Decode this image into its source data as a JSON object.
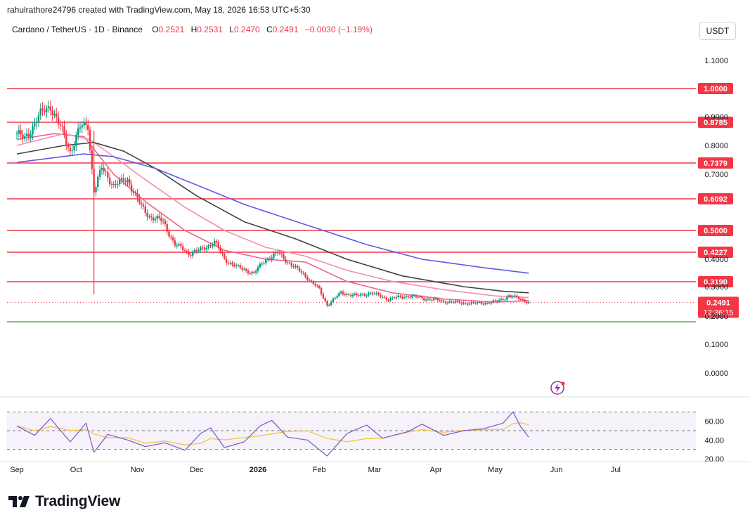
{
  "attribution": "rahulrathore24796 created with TradingView.com, May 18, 2026 16:53 UTC+5:30",
  "legend": {
    "symbol": "Cardano / TetherUS · 1D · Binance",
    "open_label": "O",
    "open": "0.2521",
    "high_label": "H",
    "high": "0.2531",
    "low_label": "L",
    "low": "0.2470",
    "close_label": "C",
    "close": "0.2491",
    "change": "−0.0030 (−1.19%)"
  },
  "currency_button": "USDT",
  "brand": "TradingView",
  "colors": {
    "up": "#089981",
    "down": "#f23645",
    "level": "#f23645",
    "support": "#4caf50",
    "ma_fast": "#f06292",
    "ma_mid": "#f48fb1",
    "ma_slow": "#424242",
    "ma_long": "#5b5bea",
    "rsi": "#7e57c2",
    "rsi_ma": "#f5c542"
  },
  "chart_data": {
    "type": "candlestick",
    "pair": "ADA/USDT",
    "timeframe": "1D",
    "exchange": "Binance",
    "price_axis": {
      "ticks": [
        "1.1000",
        "0.9000",
        "0.8000",
        "0.7000",
        "0.4000",
        "0.3000",
        "0.2000",
        "0.1000",
        "0.0000"
      ]
    },
    "time_axis": {
      "labels": [
        "Sep",
        "Oct",
        "Nov",
        "Dec",
        "2026",
        "Feb",
        "Mar",
        "Apr",
        "May",
        "Jun",
        "Jul"
      ]
    },
    "horizontal_levels": [
      {
        "value": "1.0000"
      },
      {
        "value": "0.8785"
      },
      {
        "value": "0.7379"
      },
      {
        "value": "0.6092"
      },
      {
        "value": "0.5000"
      },
      {
        "value": "0.4227"
      },
      {
        "value": "0.3190"
      }
    ],
    "support_level": 0.21,
    "last_price": {
      "value": "0.2491",
      "countdown": "12:36:15"
    },
    "price_path": [
      {
        "date": "2025-09-01",
        "close": 0.84
      },
      {
        "date": "2025-09-05",
        "close": 0.82
      },
      {
        "date": "2025-09-12",
        "close": 0.9
      },
      {
        "date": "2025-09-18",
        "close": 0.94
      },
      {
        "date": "2025-09-23",
        "close": 0.86
      },
      {
        "date": "2025-09-28",
        "close": 0.78
      },
      {
        "date": "2025-10-03",
        "close": 0.86
      },
      {
        "date": "2025-10-07",
        "close": 0.87
      },
      {
        "date": "2025-10-10",
        "close": 0.64
      },
      {
        "date": "2025-10-14",
        "close": 0.72
      },
      {
        "date": "2025-10-20",
        "close": 0.66
      },
      {
        "date": "2025-10-27",
        "close": 0.68
      },
      {
        "date": "2025-11-03",
        "close": 0.58
      },
      {
        "date": "2025-11-07",
        "close": 0.55
      },
      {
        "date": "2025-11-14",
        "close": 0.53
      },
      {
        "date": "2025-11-20",
        "close": 0.45
      },
      {
        "date": "2025-11-27",
        "close": 0.42
      },
      {
        "date": "2025-12-03",
        "close": 0.43
      },
      {
        "date": "2025-12-10",
        "close": 0.46
      },
      {
        "date": "2025-12-15",
        "close": 0.4
      },
      {
        "date": "2025-12-22",
        "close": 0.37
      },
      {
        "date": "2025-12-30",
        "close": 0.35
      },
      {
        "date": "2026-01-05",
        "close": 0.4
      },
      {
        "date": "2026-01-11",
        "close": 0.42
      },
      {
        "date": "2026-01-18",
        "close": 0.38
      },
      {
        "date": "2026-01-25",
        "close": 0.34
      },
      {
        "date": "2026-02-01",
        "close": 0.29
      },
      {
        "date": "2026-02-05",
        "close": 0.24
      },
      {
        "date": "2026-02-12",
        "close": 0.28
      },
      {
        "date": "2026-02-20",
        "close": 0.27
      },
      {
        "date": "2026-02-27",
        "close": 0.28
      },
      {
        "date": "2026-03-08",
        "close": 0.26
      },
      {
        "date": "2026-03-18",
        "close": 0.27
      },
      {
        "date": "2026-03-28",
        "close": 0.26
      },
      {
        "date": "2026-04-08",
        "close": 0.25
      },
      {
        "date": "2026-04-20",
        "close": 0.245
      },
      {
        "date": "2026-05-01",
        "close": 0.25
      },
      {
        "date": "2026-05-08",
        "close": 0.27
      },
      {
        "date": "2026-05-14",
        "close": 0.26
      },
      {
        "date": "2026-05-18",
        "close": 0.2491
      }
    ],
    "rsi": {
      "ticks": [
        "60.00",
        "40.00",
        "20.00"
      ],
      "bands": [
        70,
        50,
        30
      ],
      "series": [
        {
          "date": "2025-09-01",
          "value": 55
        },
        {
          "date": "2025-09-10",
          "value": 45
        },
        {
          "date": "2025-09-18",
          "value": 63
        },
        {
          "date": "2025-09-28",
          "value": 38
        },
        {
          "date": "2025-10-06",
          "value": 58
        },
        {
          "date": "2025-10-10",
          "value": 27
        },
        {
          "date": "2025-10-17",
          "value": 46
        },
        {
          "date": "2025-10-27",
          "value": 40
        },
        {
          "date": "2025-11-05",
          "value": 33
        },
        {
          "date": "2025-11-15",
          "value": 37
        },
        {
          "date": "2025-11-25",
          "value": 29
        },
        {
          "date": "2025-12-03",
          "value": 47
        },
        {
          "date": "2025-12-08",
          "value": 53
        },
        {
          "date": "2025-12-15",
          "value": 32
        },
        {
          "date": "2025-12-25",
          "value": 38
        },
        {
          "date": "2026-01-02",
          "value": 55
        },
        {
          "date": "2026-01-08",
          "value": 61
        },
        {
          "date": "2026-01-16",
          "value": 43
        },
        {
          "date": "2026-01-26",
          "value": 40
        },
        {
          "date": "2026-02-05",
          "value": 23
        },
        {
          "date": "2026-02-15",
          "value": 47
        },
        {
          "date": "2026-02-25",
          "value": 56
        },
        {
          "date": "2026-03-05",
          "value": 42
        },
        {
          "date": "2026-03-18",
          "value": 49
        },
        {
          "date": "2026-03-25",
          "value": 57
        },
        {
          "date": "2026-04-05",
          "value": 45
        },
        {
          "date": "2026-04-15",
          "value": 50
        },
        {
          "date": "2026-04-25",
          "value": 52
        },
        {
          "date": "2026-05-05",
          "value": 58
        },
        {
          "date": "2026-05-10",
          "value": 70
        },
        {
          "date": "2026-05-14",
          "value": 54
        },
        {
          "date": "2026-05-18",
          "value": 43
        }
      ]
    },
    "moving_averages": [
      {
        "color": "ma_fast",
        "path": [
          [
            0.82,
            "2025-09-01"
          ],
          [
            0.84,
            "2025-09-20"
          ],
          [
            0.83,
            "2025-10-05"
          ],
          [
            0.7,
            "2025-10-20"
          ],
          [
            0.6,
            "2025-11-05"
          ],
          [
            0.5,
            "2025-11-25"
          ],
          [
            0.43,
            "2025-12-15"
          ],
          [
            0.4,
            "2026-01-05"
          ],
          [
            0.39,
            "2026-01-25"
          ],
          [
            0.32,
            "2026-02-15"
          ],
          [
            0.28,
            "2026-03-10"
          ],
          [
            0.26,
            "2026-04-05"
          ],
          [
            0.25,
            "2026-05-01"
          ],
          [
            0.255,
            "2026-05-18"
          ]
        ]
      },
      {
        "color": "ma_mid",
        "path": [
          [
            0.8,
            "2025-09-01"
          ],
          [
            0.84,
            "2025-09-25"
          ],
          [
            0.82,
            "2025-10-08"
          ],
          [
            0.76,
            "2025-10-20"
          ],
          [
            0.68,
            "2025-11-05"
          ],
          [
            0.58,
            "2025-11-25"
          ],
          [
            0.5,
            "2025-12-15"
          ],
          [
            0.44,
            "2026-01-05"
          ],
          [
            0.41,
            "2026-01-25"
          ],
          [
            0.36,
            "2026-02-15"
          ],
          [
            0.32,
            "2026-03-10"
          ],
          [
            0.29,
            "2026-04-05"
          ],
          [
            0.27,
            "2026-05-01"
          ],
          [
            0.265,
            "2026-05-18"
          ]
        ]
      },
      {
        "color": "ma_slow",
        "path": [
          [
            0.77,
            "2025-09-01"
          ],
          [
            0.8,
            "2025-09-25"
          ],
          [
            0.81,
            "2025-10-10"
          ],
          [
            0.78,
            "2025-10-25"
          ],
          [
            0.72,
            "2025-11-10"
          ],
          [
            0.62,
            "2025-12-01"
          ],
          [
            0.53,
            "2025-12-25"
          ],
          [
            0.47,
            "2026-01-20"
          ],
          [
            0.4,
            "2026-02-15"
          ],
          [
            0.34,
            "2026-03-15"
          ],
          [
            0.3,
            "2026-04-15"
          ],
          [
            0.285,
            "2026-05-05"
          ],
          [
            0.28,
            "2026-05-18"
          ]
        ]
      },
      {
        "color": "ma_long",
        "path": [
          [
            0.74,
            "2025-09-01"
          ],
          [
            0.77,
            "2025-10-05"
          ],
          [
            0.76,
            "2025-10-20"
          ],
          [
            0.72,
            "2025-11-10"
          ],
          [
            0.66,
            "2025-12-01"
          ],
          [
            0.59,
            "2025-12-25"
          ],
          [
            0.52,
            "2026-01-25"
          ],
          [
            0.45,
            "2026-02-25"
          ],
          [
            0.4,
            "2026-03-25"
          ],
          [
            0.37,
            "2026-04-25"
          ],
          [
            0.35,
            "2026-05-18"
          ]
        ]
      }
    ]
  }
}
